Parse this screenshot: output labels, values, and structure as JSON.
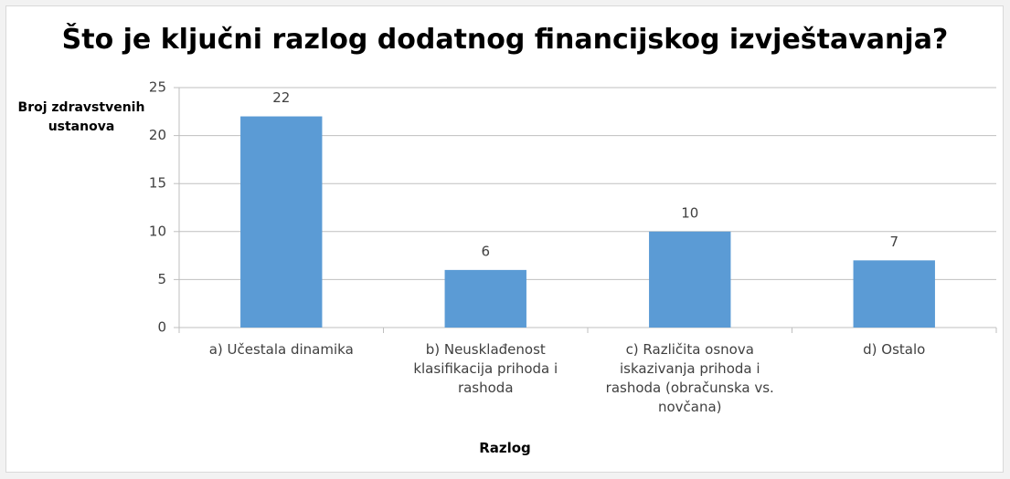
{
  "chart_data": {
    "type": "bar",
    "title": "Što je ključni razlog dodatnog financijskog izvještavanja?",
    "y_label": "Broj zdravstvenih ustanova",
    "x_label": "Razlog",
    "categories": [
      "a) Učestala dinamika",
      "b) Neusklađenost klasifikacija prihoda i rashoda",
      "c) Različita osnova iskazivanja prihoda i rashoda (obračunska vs. novčana)",
      "d) Ostalo"
    ],
    "values": [
      22,
      6,
      10,
      7
    ],
    "color": "#5b9bd5",
    "ylim": [
      0,
      25
    ],
    "yticks": [
      0,
      5,
      10,
      15,
      20,
      25
    ],
    "grid": true
  }
}
